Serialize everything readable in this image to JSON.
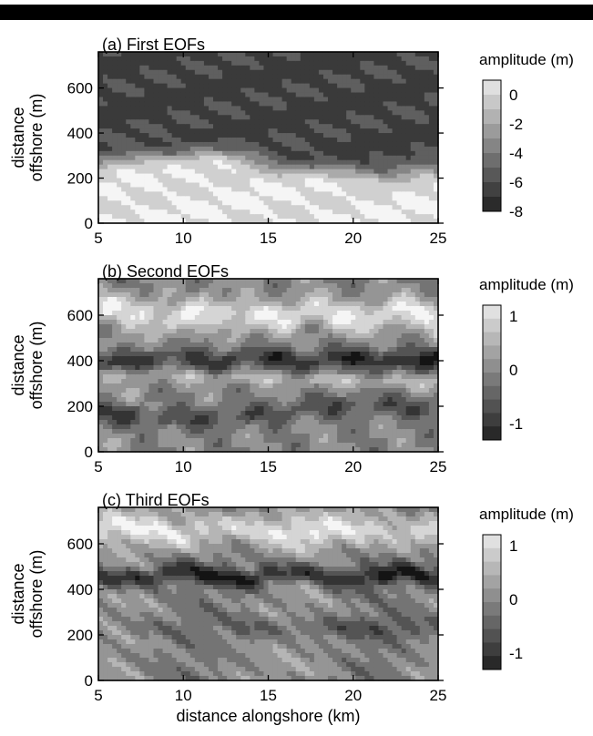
{
  "chart_data": [
    {
      "type": "heatmap",
      "title": "(a) First EOFs",
      "ylabel": "distance offshore (m)",
      "xlabel": "",
      "xlim": [
        5,
        25
      ],
      "ylim": [
        0,
        760
      ],
      "x_ticks": [
        5,
        10,
        15,
        20,
        25
      ],
      "y_ticks": [
        0,
        200,
        400,
        600
      ],
      "colorbar": {
        "label": "amplitude (m)",
        "range": [
          -8,
          1
        ],
        "ticks": [
          0,
          -2,
          -4,
          -6,
          -8
        ]
      },
      "grid": false
    },
    {
      "type": "heatmap",
      "title": "(b) Second EOFs",
      "ylabel": "distance offshore (m)",
      "xlabel": "",
      "xlim": [
        5,
        25
      ],
      "ylim": [
        0,
        760
      ],
      "x_ticks": [
        5,
        10,
        15,
        20,
        25
      ],
      "y_ticks": [
        0,
        200,
        400,
        600
      ],
      "colorbar": {
        "label": "amplitude (m)",
        "range": [
          -1.3,
          1.2
        ],
        "ticks": [
          1,
          0,
          -1
        ]
      },
      "grid": false
    },
    {
      "type": "heatmap",
      "title": "(c) Third EOFs",
      "ylabel": "distance offshore (m)",
      "xlabel": "distance alongshore (km)",
      "xlim": [
        5,
        25
      ],
      "ylim": [
        0,
        760
      ],
      "x_ticks": [
        5,
        10,
        15,
        20,
        25
      ],
      "y_ticks": [
        0,
        200,
        400,
        600
      ],
      "colorbar": {
        "label": "amplitude (m)",
        "range": [
          -1.3,
          1.2
        ],
        "ticks": [
          1,
          0,
          -1
        ]
      },
      "grid": false
    }
  ]
}
